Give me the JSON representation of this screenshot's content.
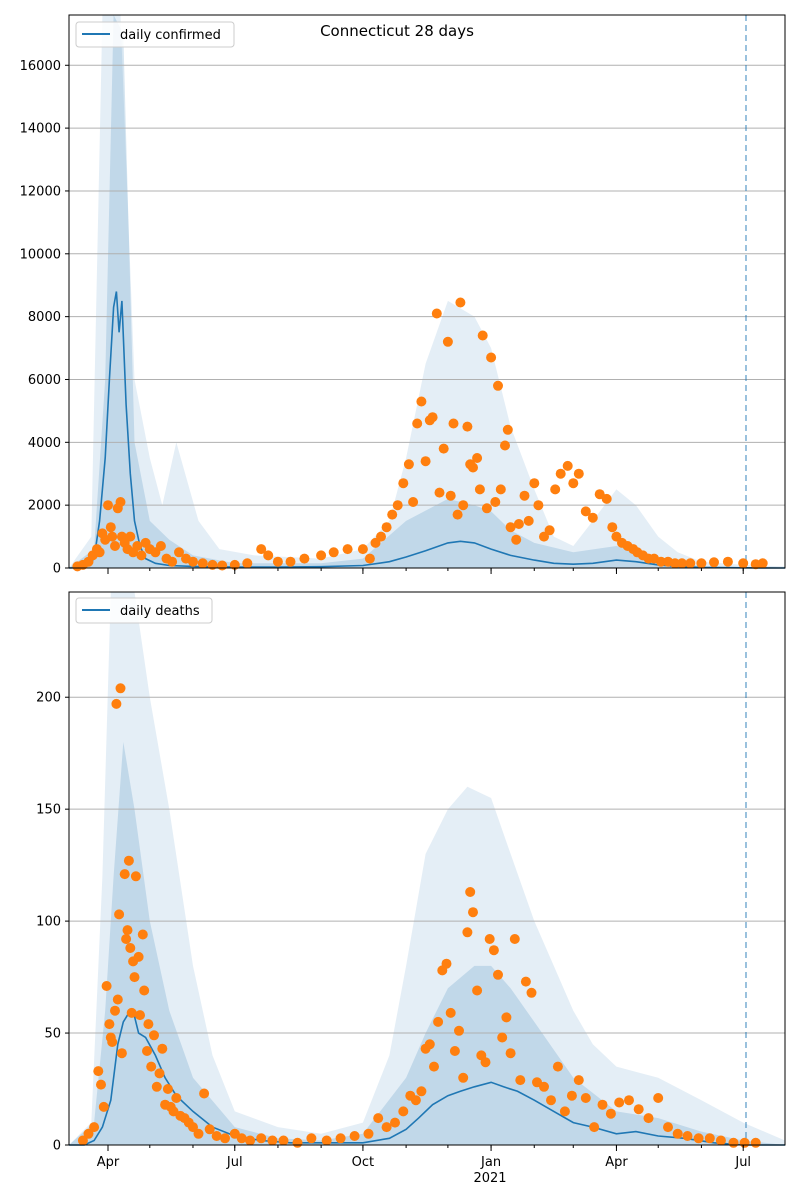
{
  "title": "Connecticut 28 days",
  "colors": {
    "model_line": "#1f77b4",
    "band": "#1f77b4",
    "observed": "#ff7f0e",
    "grid": "#b0b0b0",
    "cutoff_line": "#1f77b4"
  },
  "x_axis": {
    "tick_labels": [
      "Apr",
      "Jul",
      "Oct",
      "Jan",
      "Apr",
      "Jul"
    ],
    "tick_dates": [
      "2020-04-01",
      "2020-07-01",
      "2020-10-01",
      "2021-01-01",
      "2021-04-01",
      "2021-07-01"
    ],
    "year_label": "2021",
    "range": [
      "2020-03-04",
      "2021-07-31"
    ],
    "cutoff_date": "2021-07-03"
  },
  "chart_data": [
    {
      "type": "line",
      "legend": "daily confirmed",
      "legend_position": "top-left",
      "grid": "y",
      "ylim": [
        0,
        17600
      ],
      "y_ticks": [
        0,
        2000,
        4000,
        6000,
        8000,
        10000,
        12000,
        14000,
        16000
      ],
      "model": {
        "x": [
          "2020-03-04",
          "2020-03-16",
          "2020-03-22",
          "2020-03-26",
          "2020-03-30",
          "2020-04-02",
          "2020-04-05",
          "2020-04-07",
          "2020-04-09",
          "2020-04-11",
          "2020-04-14",
          "2020-04-17",
          "2020-04-20",
          "2020-04-24",
          "2020-04-28",
          "2020-05-05",
          "2020-05-15",
          "2020-06-01",
          "2020-07-01",
          "2020-08-01",
          "2020-09-01",
          "2020-10-01",
          "2020-10-20",
          "2020-11-01",
          "2020-11-15",
          "2020-12-01",
          "2020-12-10",
          "2020-12-20",
          "2021-01-01",
          "2021-01-15",
          "2021-02-01",
          "2021-02-15",
          "2021-03-01",
          "2021-03-15",
          "2021-04-01",
          "2021-04-15",
          "2021-05-01",
          "2021-05-15",
          "2021-06-01",
          "2021-07-01",
          "2021-07-31"
        ],
        "y": [
          0,
          20,
          300,
          1500,
          3500,
          6000,
          8300,
          8800,
          7500,
          8500,
          5200,
          3000,
          1500,
          700,
          300,
          150,
          80,
          50,
          30,
          30,
          40,
          80,
          200,
          350,
          550,
          800,
          850,
          800,
          600,
          400,
          250,
          150,
          120,
          150,
          250,
          200,
          100,
          50,
          20,
          5,
          0
        ]
      },
      "band_outer": {
        "x": [
          "2020-03-04",
          "2020-03-20",
          "2020-03-28",
          "2020-04-02",
          "2020-04-10",
          "2020-04-20",
          "2020-05-01",
          "2020-05-10",
          "2020-05-20",
          "2020-06-05",
          "2020-06-20",
          "2020-07-15",
          "2020-09-01",
          "2020-10-01",
          "2020-10-20",
          "2020-11-01",
          "2020-11-15",
          "2020-12-01",
          "2020-12-20",
          "2021-01-01",
          "2021-01-15",
          "2021-02-01",
          "2021-02-15",
          "2021-03-01",
          "2021-03-15",
          "2021-04-01",
          "2021-04-15",
          "2021-05-01",
          "2021-05-15",
          "2021-06-01",
          "2021-07-01",
          "2021-07-31"
        ],
        "y": [
          0,
          1000,
          17600,
          17600,
          17600,
          6000,
          3500,
          2000,
          4000,
          1500,
          600,
          400,
          300,
          600,
          1500,
          3500,
          6500,
          8500,
          8000,
          7000,
          4500,
          2500,
          1000,
          700,
          1500,
          2500,
          2000,
          1000,
          500,
          200,
          100,
          50
        ]
      },
      "band_inner": {
        "x": [
          "2020-03-04",
          "2020-03-22",
          "2020-03-30",
          "2020-04-05",
          "2020-04-12",
          "2020-04-20",
          "2020-05-01",
          "2020-05-15",
          "2020-06-01",
          "2020-07-01",
          "2020-09-01",
          "2020-10-01",
          "2020-11-01",
          "2020-12-01",
          "2020-12-20",
          "2021-01-01",
          "2021-01-15",
          "2021-02-01",
          "2021-03-01",
          "2021-04-01",
          "2021-05-01",
          "2021-06-01",
          "2021-07-31"
        ],
        "y": [
          0,
          600,
          6000,
          17600,
          17000,
          4000,
          1500,
          900,
          400,
          150,
          150,
          300,
          1500,
          2200,
          2000,
          1800,
          1200,
          800,
          500,
          700,
          300,
          60,
          0
        ]
      },
      "observed": {
        "x": [
          "2020-03-10",
          "2020-03-14",
          "2020-03-18",
          "2020-03-21",
          "2020-03-24",
          "2020-03-26",
          "2020-03-28",
          "2020-03-30",
          "2020-04-01",
          "2020-04-03",
          "2020-04-04",
          "2020-04-06",
          "2020-04-08",
          "2020-04-10",
          "2020-04-11",
          "2020-04-13",
          "2020-04-15",
          "2020-04-17",
          "2020-04-19",
          "2020-04-22",
          "2020-04-25",
          "2020-04-28",
          "2020-05-01",
          "2020-05-05",
          "2020-05-09",
          "2020-05-13",
          "2020-05-17",
          "2020-05-22",
          "2020-05-27",
          "2020-06-01",
          "2020-06-08",
          "2020-06-15",
          "2020-06-22",
          "2020-07-01",
          "2020-07-10",
          "2020-07-20",
          "2020-07-25",
          "2020-08-01",
          "2020-08-10",
          "2020-08-20",
          "2020-09-01",
          "2020-09-10",
          "2020-09-20",
          "2020-10-01",
          "2020-10-06",
          "2020-10-10",
          "2020-10-14",
          "2020-10-18",
          "2020-10-22",
          "2020-10-26",
          "2020-10-30",
          "2020-11-03",
          "2020-11-06",
          "2020-11-09",
          "2020-11-12",
          "2020-11-15",
          "2020-11-18",
          "2020-11-20",
          "2020-11-23",
          "2020-11-25",
          "2020-11-28",
          "2020-12-01",
          "2020-12-03",
          "2020-12-05",
          "2020-12-08",
          "2020-12-10",
          "2020-12-12",
          "2020-12-15",
          "2020-12-17",
          "2020-12-19",
          "2020-12-22",
          "2020-12-24",
          "2020-12-26",
          "2020-12-29",
          "2021-01-01",
          "2021-01-04",
          "2021-01-06",
          "2021-01-08",
          "2021-01-11",
          "2021-01-13",
          "2021-01-15",
          "2021-01-19",
          "2021-01-21",
          "2021-01-25",
          "2021-01-28",
          "2021-02-01",
          "2021-02-04",
          "2021-02-08",
          "2021-02-12",
          "2021-02-16",
          "2021-02-20",
          "2021-02-25",
          "2021-03-01",
          "2021-03-05",
          "2021-03-10",
          "2021-03-15",
          "2021-03-20",
          "2021-03-25",
          "2021-03-29",
          "2021-04-01",
          "2021-04-05",
          "2021-04-09",
          "2021-04-13",
          "2021-04-16",
          "2021-04-20",
          "2021-04-24",
          "2021-04-28",
          "2021-05-03",
          "2021-05-08",
          "2021-05-13",
          "2021-05-18",
          "2021-05-24",
          "2021-06-01",
          "2021-06-10",
          "2021-06-20",
          "2021-07-01",
          "2021-07-10",
          "2021-07-15"
        ],
        "y": [
          50,
          100,
          200,
          400,
          600,
          500,
          1100,
          900,
          2000,
          1300,
          1000,
          700,
          1900,
          2100,
          1000,
          800,
          600,
          1000,
          500,
          700,
          400,
          800,
          600,
          500,
          700,
          300,
          200,
          500,
          300,
          200,
          150,
          100,
          80,
          100,
          150,
          600,
          400,
          200,
          200,
          300,
          400,
          500,
          600,
          600,
          300,
          800,
          1000,
          1300,
          1700,
          2000,
          2700,
          3300,
          2100,
          4600,
          5300,
          3400,
          4700,
          4800,
          8100,
          2400,
          3800,
          7200,
          2300,
          4600,
          1700,
          8450,
          2000,
          4500,
          3300,
          3200,
          3500,
          2500,
          7400,
          1900,
          6700,
          2100,
          5800,
          2500,
          3900,
          4400,
          1300,
          900,
          1400,
          2300,
          1500,
          2700,
          2000,
          1000,
          1200,
          2500,
          3000,
          3250,
          2700,
          3000,
          1800,
          1600,
          2350,
          2200,
          1300,
          1000,
          800,
          700,
          600,
          500,
          400,
          300,
          300,
          200,
          200,
          150,
          150,
          150,
          150,
          180,
          200,
          150,
          120,
          150
        ]
      }
    },
    {
      "type": "line",
      "legend": "daily deaths",
      "legend_position": "top-left",
      "grid": "y",
      "ylim": [
        0,
        247
      ],
      "y_ticks": [
        0,
        50,
        100,
        150,
        200
      ],
      "model": {
        "x": [
          "2020-03-04",
          "2020-03-15",
          "2020-03-22",
          "2020-03-28",
          "2020-04-03",
          "2020-04-08",
          "2020-04-12",
          "2020-04-15",
          "2020-04-19",
          "2020-04-23",
          "2020-04-28",
          "2020-05-05",
          "2020-05-12",
          "2020-05-20",
          "2020-06-01",
          "2020-06-15",
          "2020-07-01",
          "2020-07-20",
          "2020-08-10",
          "2020-09-01",
          "2020-10-01",
          "2020-10-20",
          "2020-11-01",
          "2020-11-10",
          "2020-11-20",
          "2020-12-01",
          "2020-12-10",
          "2020-12-20",
          "2021-01-01",
          "2021-01-10",
          "2021-01-20",
          "2021-02-01",
          "2021-02-15",
          "2021-03-01",
          "2021-03-15",
          "2021-04-01",
          "2021-04-15",
          "2021-05-01",
          "2021-05-20",
          "2021-06-10",
          "2021-07-01",
          "2021-07-31"
        ],
        "y": [
          0,
          0,
          2,
          8,
          20,
          45,
          55,
          58,
          60,
          50,
          48,
          40,
          30,
          22,
          15,
          8,
          4,
          2,
          1,
          1,
          1,
          3,
          7,
          12,
          18,
          22,
          24,
          26,
          28,
          26,
          24,
          20,
          15,
          10,
          8,
          5,
          6,
          4,
          3,
          1,
          0,
          0
        ]
      },
      "band_outer": {
        "x": [
          "2020-03-04",
          "2020-03-20",
          "2020-03-28",
          "2020-04-03",
          "2020-04-10",
          "2020-04-20",
          "2020-05-01",
          "2020-05-15",
          "2020-06-01",
          "2020-06-15",
          "2020-07-01",
          "2020-08-01",
          "2020-09-01",
          "2020-10-01",
          "2020-10-20",
          "2020-11-01",
          "2020-11-15",
          "2020-12-01",
          "2020-12-15",
          "2021-01-01",
          "2021-01-15",
          "2021-02-01",
          "2021-02-15",
          "2021-03-01",
          "2021-03-15",
          "2021-04-01",
          "2021-05-01",
          "2021-06-01",
          "2021-07-01",
          "2021-07-31"
        ],
        "y": [
          0,
          10,
          120,
          247,
          247,
          247,
          200,
          150,
          80,
          40,
          15,
          8,
          5,
          10,
          40,
          80,
          130,
          150,
          160,
          155,
          130,
          100,
          80,
          60,
          45,
          35,
          30,
          20,
          10,
          2
        ]
      },
      "band_inner": {
        "x": [
          "2020-03-04",
          "2020-03-22",
          "2020-03-30",
          "2020-04-05",
          "2020-04-12",
          "2020-04-20",
          "2020-05-01",
          "2020-05-15",
          "2020-06-01",
          "2020-07-01",
          "2020-08-01",
          "2020-09-01",
          "2020-10-01",
          "2020-11-01",
          "2020-11-15",
          "2020-12-01",
          "2020-12-20",
          "2021-01-01",
          "2021-01-15",
          "2021-02-01",
          "2021-03-01",
          "2021-04-01",
          "2021-05-01",
          "2021-06-01",
          "2021-07-01",
          "2021-07-31"
        ],
        "y": [
          0,
          10,
          60,
          120,
          180,
          150,
          100,
          60,
          30,
          8,
          3,
          2,
          5,
          30,
          50,
          70,
          80,
          80,
          70,
          55,
          30,
          15,
          12,
          6,
          2,
          0
        ]
      },
      "observed": {
        "x": [
          "2020-03-14",
          "2020-03-18",
          "2020-03-22",
          "2020-03-25",
          "2020-03-27",
          "2020-03-29",
          "2020-03-31",
          "2020-04-02",
          "2020-04-03",
          "2020-04-04",
          "2020-04-06",
          "2020-04-07",
          "2020-04-08",
          "2020-04-09",
          "2020-04-10",
          "2020-04-11",
          "2020-04-13",
          "2020-04-14",
          "2020-04-15",
          "2020-04-16",
          "2020-04-17",
          "2020-04-18",
          "2020-04-19",
          "2020-04-20",
          "2020-04-21",
          "2020-04-23",
          "2020-04-24",
          "2020-04-26",
          "2020-04-27",
          "2020-04-29",
          "2020-04-30",
          "2020-05-02",
          "2020-05-04",
          "2020-05-06",
          "2020-05-08",
          "2020-05-10",
          "2020-05-12",
          "2020-05-14",
          "2020-05-16",
          "2020-05-18",
          "2020-05-20",
          "2020-05-23",
          "2020-05-26",
          "2020-05-29",
          "2020-06-01",
          "2020-06-05",
          "2020-06-09",
          "2020-06-13",
          "2020-06-18",
          "2020-06-24",
          "2020-07-01",
          "2020-07-06",
          "2020-07-12",
          "2020-07-20",
          "2020-07-28",
          "2020-08-05",
          "2020-08-15",
          "2020-08-25",
          "2020-09-05",
          "2020-09-15",
          "2020-09-25",
          "2020-10-05",
          "2020-10-12",
          "2020-10-18",
          "2020-10-24",
          "2020-10-30",
          "2020-11-04",
          "2020-11-08",
          "2020-11-12",
          "2020-11-15",
          "2020-11-18",
          "2020-11-21",
          "2020-11-24",
          "2020-11-27",
          "2020-11-30",
          "2020-12-03",
          "2020-12-06",
          "2020-12-09",
          "2020-12-12",
          "2020-12-15",
          "2020-12-17",
          "2020-12-19",
          "2020-12-22",
          "2020-12-25",
          "2020-12-28",
          "2020-12-31",
          "2021-01-03",
          "2021-01-06",
          "2021-01-09",
          "2021-01-12",
          "2021-01-15",
          "2021-01-18",
          "2021-01-22",
          "2021-01-26",
          "2021-01-30",
          "2021-02-03",
          "2021-02-08",
          "2021-02-13",
          "2021-02-18",
          "2021-02-23",
          "2021-02-28",
          "2021-03-05",
          "2021-03-10",
          "2021-03-16",
          "2021-03-22",
          "2021-03-28",
          "2021-04-03",
          "2021-04-10",
          "2021-04-17",
          "2021-04-24",
          "2021-05-01",
          "2021-05-08",
          "2021-05-15",
          "2021-05-22",
          "2021-05-30",
          "2021-06-07",
          "2021-06-15",
          "2021-06-24",
          "2021-07-02",
          "2021-07-10"
        ],
        "y": [
          2,
          5,
          8,
          33,
          27,
          17,
          71,
          54,
          48,
          46,
          60,
          197,
          65,
          103,
          204,
          41,
          121,
          92,
          96,
          127,
          88,
          59,
          82,
          75,
          120,
          84,
          58,
          94,
          69,
          42,
          54,
          35,
          49,
          26,
          32,
          43,
          18,
          25,
          17,
          15,
          21,
          13,
          12,
          10,
          8,
          5,
          23,
          7,
          4,
          3,
          5,
          3,
          2,
          3,
          2,
          2,
          1,
          3,
          2,
          3,
          4,
          5,
          12,
          8,
          10,
          15,
          22,
          20,
          24,
          43,
          45,
          35,
          55,
          78,
          81,
          59,
          42,
          51,
          30,
          95,
          113,
          104,
          69,
          40,
          37,
          92,
          87,
          76,
          48,
          57,
          41,
          92,
          29,
          73,
          68,
          28,
          26,
          20,
          35,
          15,
          22,
          29,
          21,
          8,
          18,
          14,
          19,
          20,
          16,
          12,
          21,
          8,
          5,
          4,
          3,
          3,
          2,
          1,
          1,
          1
        ]
      }
    }
  ]
}
